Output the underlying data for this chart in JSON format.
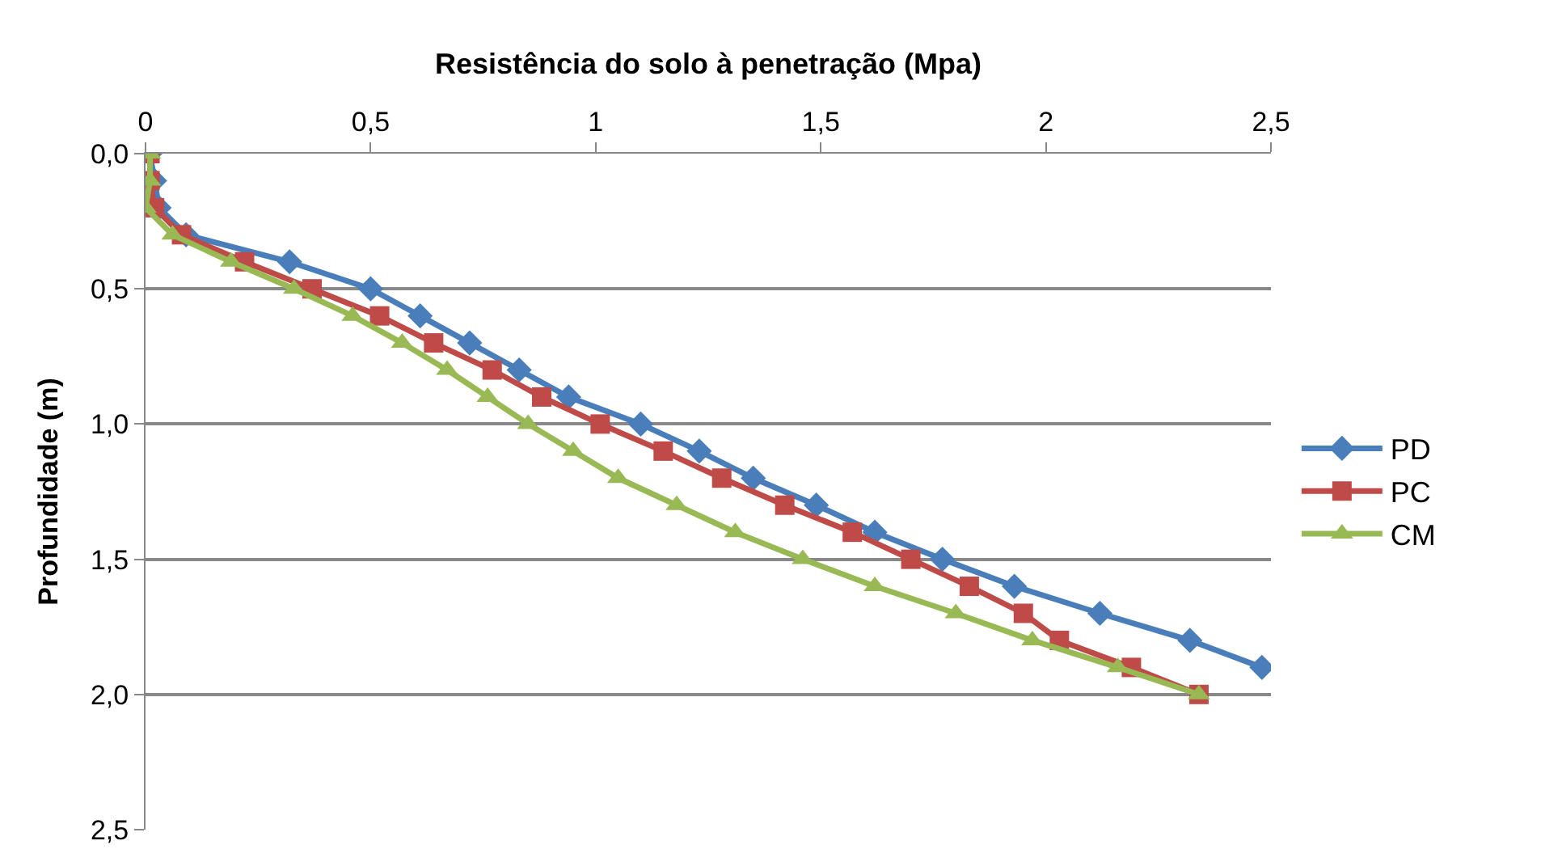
{
  "chart_data": {
    "type": "line",
    "xlabel": "Resistência do solo à penetração (Mpa)",
    "ylabel": "Profundidade (m)",
    "xlim": [
      0,
      2.5
    ],
    "xticks": [
      0,
      {
        "value": 0.5,
        "label": "0,5"
      },
      1,
      {
        "value": 1.5,
        "label": "1,5"
      },
      2,
      {
        "value": 2.5,
        "label": "2,5"
      }
    ],
    "ylim": [
      2.5,
      0
    ],
    "yticks": [
      {
        "value": 0,
        "label": "0,0"
      },
      {
        "value": 0.5,
        "label": "0,5"
      },
      {
        "value": 1,
        "label": "1,0"
      },
      {
        "value": 1.5,
        "label": "1,5"
      },
      {
        "value": 2,
        "label": "2,0"
      },
      {
        "value": 2.5,
        "label": "2,5"
      }
    ],
    "grid": "y",
    "legend": "right",
    "series": [
      {
        "name": "PD",
        "color": "#4a7ebb",
        "marker": "diamond",
        "x": [
          0.01,
          0.02,
          0.03,
          0.09,
          0.32,
          0.5,
          0.61,
          0.72,
          0.83,
          0.94,
          1.1,
          1.23,
          1.35,
          1.49,
          1.62,
          1.77,
          1.93,
          2.12,
          2.32,
          2.48
        ],
        "values": [
          0,
          0.1,
          0.2,
          0.3,
          0.4,
          0.5,
          0.6,
          0.7,
          0.8,
          0.9,
          1.0,
          1.1,
          1.2,
          1.3,
          1.4,
          1.5,
          1.6,
          1.7,
          1.8,
          1.9
        ]
      },
      {
        "name": "PC",
        "color": "#be4b48",
        "marker": "square",
        "x": [
          0.01,
          0.01,
          0.02,
          0.08,
          0.22,
          0.37,
          0.52,
          0.64,
          0.77,
          0.88,
          1.01,
          1.15,
          1.28,
          1.42,
          1.57,
          1.7,
          1.83,
          1.95,
          2.03,
          2.19,
          2.34
        ],
        "values": [
          0,
          0.1,
          0.2,
          0.3,
          0.4,
          0.5,
          0.6,
          0.7,
          0.8,
          0.9,
          1.0,
          1.1,
          1.2,
          1.3,
          1.4,
          1.5,
          1.6,
          1.7,
          1.8,
          1.9,
          2.0
        ]
      },
      {
        "name": "CM",
        "color": "#98b954",
        "marker": "triangle",
        "x": [
          0.01,
          0.01,
          0.0,
          0.06,
          0.19,
          0.33,
          0.46,
          0.57,
          0.67,
          0.76,
          0.85,
          0.95,
          1.05,
          1.18,
          1.31,
          1.46,
          1.62,
          1.8,
          1.97,
          2.16,
          2.34
        ],
        "values": [
          0,
          0.1,
          0.2,
          0.3,
          0.4,
          0.5,
          0.6,
          0.7,
          0.8,
          0.9,
          1.0,
          1.1,
          1.2,
          1.3,
          1.4,
          1.5,
          1.6,
          1.7,
          1.8,
          1.9,
          2.0
        ]
      }
    ]
  }
}
